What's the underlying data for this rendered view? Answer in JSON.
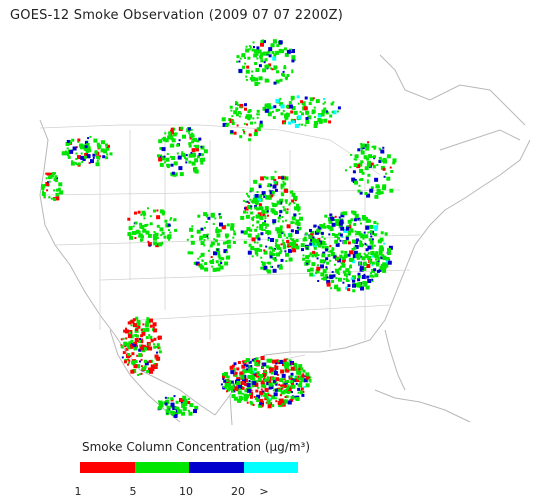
{
  "title": "GOES-12 Smoke Observation (2009 07 07  2200Z)",
  "legend": {
    "title": "Smoke Column Concentration (µg/m³)",
    "colors": [
      "#ff0000",
      "#00e600",
      "#0000cc",
      "#00ffff"
    ],
    "tick_labels": [
      "1",
      "5",
      "10",
      "20",
      ">"
    ]
  },
  "smoke_palette": {
    "class_1_5": "#ff0000",
    "class_5_10": "#00e600",
    "class_10_20": "#0000cc",
    "class_20_plus": "#00ffff"
  }
}
